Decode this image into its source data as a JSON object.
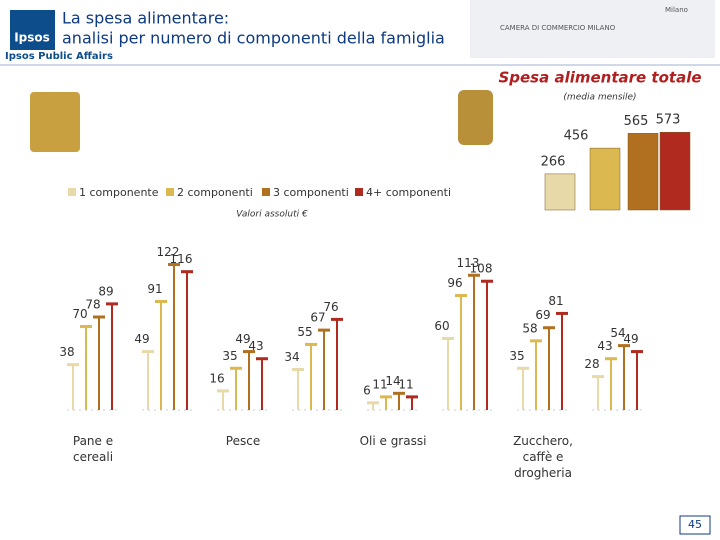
{
  "header": {
    "title_line1": "La spesa alimentare:",
    "title_line2": "analisi per numero di componenti della famiglia",
    "brand": "Ipsos",
    "subbrand": "Ipsos Public Affairs",
    "partner": "CAMERA DI COMMERCIO MILANO",
    "city": "Milano"
  },
  "page_number": "45",
  "chart_data": [
    {
      "type": "bar",
      "title": "Spesa alimentare totale",
      "subtitle": "(media mensile)",
      "values": [
        266,
        456,
        565,
        573
      ],
      "colors": [
        "#e8d9a8",
        "#dcb850",
        "#b07020",
        "#b02a20"
      ],
      "ylim": [
        0,
        700
      ]
    },
    {
      "type": "bar",
      "subtitle": "Valori assoluti €",
      "legend": "top",
      "categories": [
        "Pane e cereali",
        null,
        "Pesce",
        null,
        "Oli e grassi",
        null,
        "Zucchero, caffè e drogheria",
        null
      ],
      "series": [
        {
          "name": "1 componente",
          "color": "#e8d9a8",
          "values": [
            38,
            49,
            16,
            34,
            6,
            60,
            35,
            28
          ]
        },
        {
          "name": "2 componenti",
          "color": "#dcb850",
          "values": [
            70,
            91,
            35,
            55,
            11,
            96,
            58,
            43
          ]
        },
        {
          "name": "3 componenti",
          "color": "#b07020",
          "values": [
            78,
            122,
            49,
            67,
            14,
            113,
            69,
            54
          ]
        },
        {
          "name": "4+ componenti",
          "color": "#b02a20",
          "values": [
            89,
            116,
            43,
            76,
            11,
            108,
            81,
            49
          ]
        }
      ],
      "ylim": [
        0,
        130
      ]
    }
  ]
}
